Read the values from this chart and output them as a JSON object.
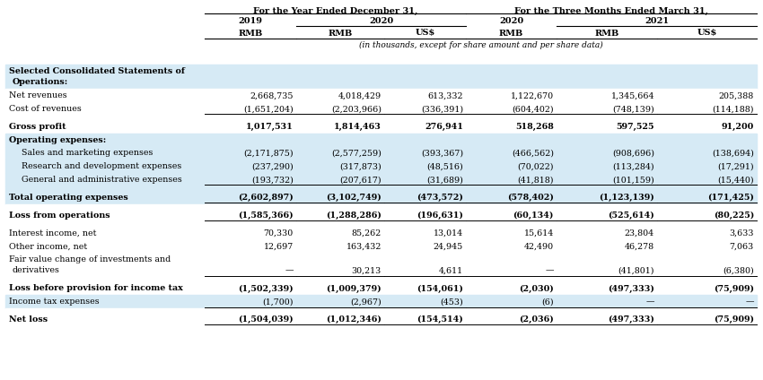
{
  "title_left": "For the Year Ended December 31,",
  "title_right": "For the Three Months Ended March 31,",
  "subtitle": "(in thousands, except for share amount and per share data)",
  "bg_light": "#d6eaf5",
  "bg_white": "#ffffff",
  "text_color": "#000000",
  "rows": [
    {
      "label": "Selected Consolidated Statements of",
      "label2": "Operations:",
      "values": [
        "",
        "",
        "",
        "",
        "",
        ""
      ],
      "bold": true,
      "italic": false,
      "bg": "light",
      "indent": 0,
      "underline": false,
      "spacer": false,
      "double_line": false
    },
    {
      "label": "Net revenues",
      "label2": null,
      "values": [
        "2,668,735",
        "4,018,429",
        "613,332",
        "1,122,670",
        "1,345,664",
        "205,388"
      ],
      "bold": false,
      "italic": false,
      "bg": "white",
      "indent": 0,
      "underline": false,
      "spacer": false,
      "double_line": false
    },
    {
      "label": "Cost of revenues",
      "label2": null,
      "values": [
        "(1,651,204)",
        "(2,203,966)",
        "(336,391)",
        "(604,402)",
        "(748,139)",
        "(114,188)"
      ],
      "bold": false,
      "italic": false,
      "bg": "white",
      "indent": 0,
      "underline": true,
      "spacer": false,
      "double_line": false
    },
    {
      "label": null,
      "label2": null,
      "values": [
        "",
        "",
        "",
        "",
        "",
        ""
      ],
      "bold": false,
      "italic": false,
      "bg": "white",
      "indent": 0,
      "underline": false,
      "spacer": true,
      "double_line": false
    },
    {
      "label": "Gross profit",
      "label2": null,
      "values": [
        "1,017,531",
        "1,814,463",
        "276,941",
        "518,268",
        "597,525",
        "91,200"
      ],
      "bold": true,
      "italic": false,
      "bg": "white",
      "indent": 0,
      "underline": false,
      "spacer": false,
      "double_line": false
    },
    {
      "label": "Operating expenses:",
      "label2": null,
      "values": [
        "",
        "",
        "",
        "",
        "",
        ""
      ],
      "bold": true,
      "italic": false,
      "bg": "light",
      "indent": 0,
      "underline": false,
      "spacer": false,
      "double_line": false
    },
    {
      "label": "Sales and marketing expenses",
      "label2": null,
      "values": [
        "(2,171,875)",
        "(2,577,259)",
        "(393,367)",
        "(466,562)",
        "(908,696)",
        "(138,694)"
      ],
      "bold": false,
      "italic": false,
      "bg": "light",
      "indent": 1,
      "underline": false,
      "spacer": false,
      "double_line": false
    },
    {
      "label": "Research and development expenses",
      "label2": null,
      "values": [
        "(237,290)",
        "(317,873)",
        "(48,516)",
        "(70,022)",
        "(113,284)",
        "(17,291)"
      ],
      "bold": false,
      "italic": false,
      "bg": "light",
      "indent": 1,
      "underline": false,
      "spacer": false,
      "double_line": false
    },
    {
      "label": "General and administrative expenses",
      "label2": null,
      "values": [
        "(193,732)",
        "(207,617)",
        "(31,689)",
        "(41,818)",
        "(101,159)",
        "(15,440)"
      ],
      "bold": false,
      "italic": false,
      "bg": "light",
      "indent": 1,
      "underline": true,
      "spacer": false,
      "double_line": false
    },
    {
      "label": null,
      "label2": null,
      "values": [
        "",
        "",
        "",
        "",
        "",
        ""
      ],
      "bold": false,
      "italic": false,
      "bg": "light",
      "indent": 0,
      "underline": false,
      "spacer": true,
      "double_line": false
    },
    {
      "label": "Total operating expenses",
      "label2": null,
      "values": [
        "(2,602,897)",
        "(3,102,749)",
        "(473,572)",
        "(578,402)",
        "(1,123,139)",
        "(171,425)"
      ],
      "bold": true,
      "italic": false,
      "bg": "light",
      "indent": 0,
      "underline": true,
      "spacer": false,
      "double_line": false
    },
    {
      "label": null,
      "label2": null,
      "values": [
        "",
        "",
        "",
        "",
        "",
        ""
      ],
      "bold": false,
      "italic": false,
      "bg": "white",
      "indent": 0,
      "underline": false,
      "spacer": true,
      "double_line": false
    },
    {
      "label": "Loss from operations",
      "label2": null,
      "values": [
        "(1,585,366)",
        "(1,288,286)",
        "(196,631)",
        "(60,134)",
        "(525,614)",
        "(80,225)"
      ],
      "bold": true,
      "italic": false,
      "bg": "white",
      "indent": 0,
      "underline": true,
      "spacer": false,
      "double_line": false
    },
    {
      "label": null,
      "label2": null,
      "values": [
        "",
        "",
        "",
        "",
        "",
        ""
      ],
      "bold": false,
      "italic": false,
      "bg": "white",
      "indent": 0,
      "underline": false,
      "spacer": true,
      "double_line": false
    },
    {
      "label": "Interest income, net",
      "label2": null,
      "values": [
        "70,330",
        "85,262",
        "13,014",
        "15,614",
        "23,804",
        "3,633"
      ],
      "bold": false,
      "italic": false,
      "bg": "white",
      "indent": 0,
      "underline": false,
      "spacer": false,
      "double_line": false
    },
    {
      "label": "Other income, net",
      "label2": null,
      "values": [
        "12,697",
        "163,432",
        "24,945",
        "42,490",
        "46,278",
        "7,063"
      ],
      "bold": false,
      "italic": false,
      "bg": "white",
      "indent": 0,
      "underline": false,
      "spacer": false,
      "double_line": false
    },
    {
      "label": "Fair value change of investments and",
      "label2": "  derivatives",
      "values": [
        "—",
        "30,213",
        "4,611",
        "—",
        "(41,801)",
        "(6,380)"
      ],
      "bold": false,
      "italic": false,
      "bg": "white",
      "indent": 0,
      "underline": true,
      "spacer": false,
      "double_line": false
    },
    {
      "label": null,
      "label2": null,
      "values": [
        "",
        "",
        "",
        "",
        "",
        ""
      ],
      "bold": false,
      "italic": false,
      "bg": "white",
      "indent": 0,
      "underline": false,
      "spacer": true,
      "double_line": false
    },
    {
      "label": "Loss before provision for income tax",
      "label2": null,
      "values": [
        "(1,502,339)",
        "(1,009,379)",
        "(154,061)",
        "(2,030)",
        "(497,333)",
        "(75,909)"
      ],
      "bold": true,
      "italic": false,
      "bg": "white",
      "indent": 0,
      "underline": false,
      "spacer": false,
      "double_line": false
    },
    {
      "label": "Income tax expenses",
      "label2": null,
      "values": [
        "(1,700)",
        "(2,967)",
        "(453)",
        "(6)",
        "—",
        "—"
      ],
      "bold": false,
      "italic": false,
      "bg": "light",
      "indent": 0,
      "underline": true,
      "spacer": false,
      "double_line": false
    },
    {
      "label": null,
      "label2": null,
      "values": [
        "",
        "",
        "",
        "",
        "",
        ""
      ],
      "bold": false,
      "italic": false,
      "bg": "white",
      "indent": 0,
      "underline": false,
      "spacer": true,
      "double_line": false
    },
    {
      "label": "Net loss",
      "label2": null,
      "values": [
        "(1,504,039)",
        "(1,012,346)",
        "(154,514)",
        "(2,036)",
        "(497,333)",
        "(75,909)"
      ],
      "bold": true,
      "italic": false,
      "bg": "white",
      "indent": 0,
      "underline": true,
      "spacer": false,
      "double_line": false
    }
  ]
}
